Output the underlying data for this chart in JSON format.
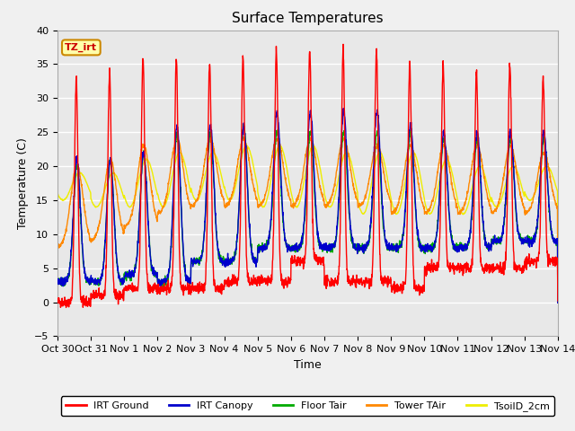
{
  "title": "Surface Temperatures",
  "xlabel": "Time",
  "ylabel": "Temperature (C)",
  "ylim": [
    -5,
    40
  ],
  "x_tick_labels": [
    "Oct 30",
    "Oct 31",
    "Nov 1",
    "Nov 2",
    "Nov 3",
    "Nov 4",
    "Nov 5",
    "Nov 6",
    "Nov 7",
    "Nov 8",
    "Nov 9",
    "Nov 10",
    "Nov 11",
    "Nov 12",
    "Nov 13",
    "Nov 14"
  ],
  "series_colors": {
    "IRT Ground": "#ff0000",
    "IRT Canopy": "#0000cc",
    "Floor Tair": "#00aa00",
    "Tower TAir": "#ff8800",
    "TsoilD_2cm": "#eeee00"
  },
  "annotation_text": "TZ_irt",
  "plot_bg_color": "#e8e8e8",
  "grid_color": "#ffffff",
  "title_fontsize": 11,
  "axis_fontsize": 9,
  "tick_fontsize": 8,
  "irt_ground_min": [
    0,
    1,
    2,
    2,
    2,
    3,
    3,
    6,
    3,
    3,
    2,
    5,
    5,
    5,
    6
  ],
  "irt_ground_max": [
    33,
    34,
    36,
    36,
    35,
    36,
    37,
    37,
    37,
    37,
    35,
    35,
    34,
    35,
    33
  ],
  "irt_canopy_min": [
    3,
    3,
    4,
    3,
    6,
    6,
    8,
    8,
    8,
    8,
    8,
    8,
    8,
    9,
    9
  ],
  "irt_canopy_max": [
    21,
    21,
    22,
    26,
    26,
    26,
    28,
    28,
    28,
    28,
    26,
    25,
    25,
    25,
    25
  ],
  "floor_tair_min": [
    3,
    3,
    4,
    3,
    6,
    6,
    8,
    8,
    8,
    8,
    8,
    8,
    8,
    9,
    9
  ],
  "floor_tair_max": [
    20,
    21,
    22,
    25,
    25,
    26,
    25,
    25,
    25,
    25,
    25,
    24,
    24,
    24,
    24
  ],
  "tower_tair_min": [
    8,
    9,
    11,
    13,
    14,
    14,
    14,
    14,
    14,
    14,
    13,
    13,
    13,
    13,
    13
  ],
  "tower_tair_max": [
    20,
    21,
    23,
    24,
    24,
    24,
    24,
    24,
    24,
    23,
    23,
    23,
    23,
    23,
    22
  ],
  "tsoil_min": [
    15,
    14,
    14,
    14,
    15,
    15,
    14,
    14,
    14,
    13,
    13,
    13,
    13,
    14,
    15
  ],
  "tsoil_max": [
    19,
    19,
    21,
    22,
    22,
    23,
    23,
    23,
    22,
    22,
    22,
    21,
    20,
    20,
    20
  ]
}
